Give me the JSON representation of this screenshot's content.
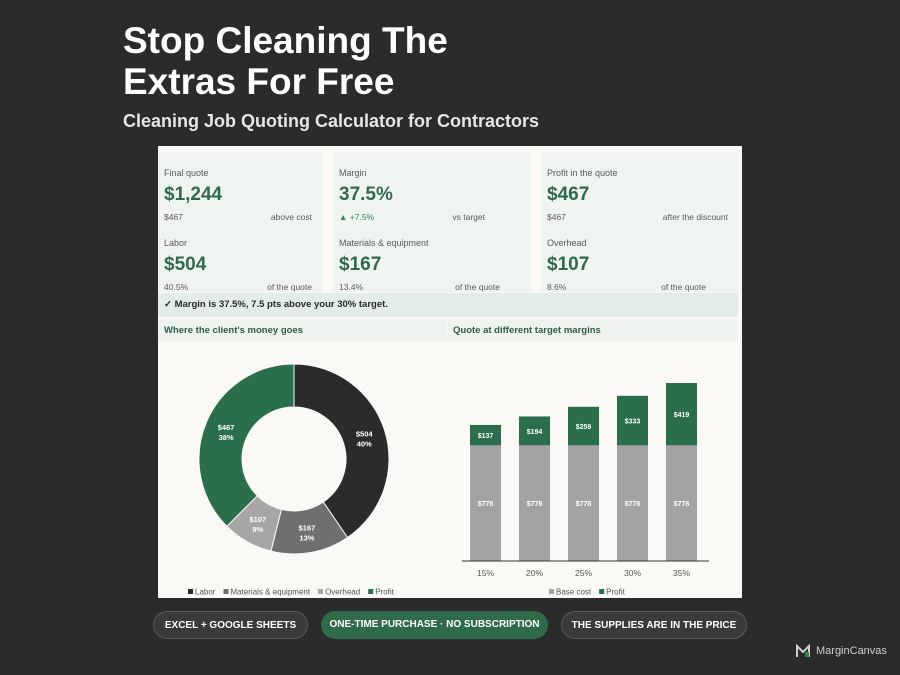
{
  "header": {
    "title_line1": "Stop Cleaning The",
    "title_line2": "Extras For Free",
    "subtitle": "Cleaning Job Quoting Calculator for Contractors"
  },
  "cards": [
    {
      "label": "Final quote",
      "value": "$1,244",
      "sub_left": "$467",
      "sub_right": "above cost"
    },
    {
      "label": "Margin",
      "value": "37.5%",
      "sub_left": "▲ +7.5%",
      "sub_right": "vs target"
    },
    {
      "label": "Profit in the quote",
      "value": "$467",
      "sub_left": "$467",
      "sub_right": "after the discount"
    },
    {
      "label": "Labor",
      "value": "$504",
      "sub_left": "40.5%",
      "sub_right": "of the quote"
    },
    {
      "label": "Materials & equipment",
      "value": "$167",
      "sub_left": "13.4%",
      "sub_right": "of the quote"
    },
    {
      "label": "Overhead",
      "value": "$107",
      "sub_left": "8.6%",
      "sub_right": "of the quote"
    }
  ],
  "banner": "✓  Margin is 37.5%, 7.5 pts above your 30% target.",
  "sections": {
    "left": "Where the client's money goes",
    "right": "Quote at different target margins"
  },
  "colors": {
    "labor": "#2b2b2b",
    "materials": "#6f6f6f",
    "overhead": "#a6a6a6",
    "profit": "#2b6e4b",
    "base": "#a3a3a3"
  },
  "chart_data": [
    {
      "type": "pie",
      "style": "donut",
      "categories": [
        "Labor",
        "Materials & equipment",
        "Overhead",
        "Profit"
      ],
      "values": [
        504,
        167,
        107,
        467
      ],
      "labels": [
        "$504",
        "$167",
        "$107",
        "$467"
      ],
      "percent_labels": [
        "40%",
        "13%",
        "9%",
        "38%"
      ],
      "legend": "bottom"
    },
    {
      "type": "bar",
      "stacked": true,
      "categories": [
        "15%",
        "20%",
        "25%",
        "30%",
        "35%"
      ],
      "series": [
        {
          "name": "Base cost",
          "values": [
            778,
            778,
            778,
            778,
            778
          ],
          "labels": [
            "$778",
            "$778",
            "$778",
            "$778",
            "$778"
          ]
        },
        {
          "name": "Profit",
          "values": [
            137,
            194,
            259,
            333,
            419
          ],
          "labels": [
            "$137",
            "$194",
            "$259",
            "$333",
            "$419"
          ]
        }
      ],
      "legend": "bottom"
    }
  ],
  "pills": [
    "EXCEL + GOOGLE SHEETS",
    "ONE-TIME PURCHASE · NO SUBSCRIPTION",
    "THE SUPPLIES ARE IN THE PRICE"
  ],
  "brand": {
    "name": "MarginCanvas"
  }
}
